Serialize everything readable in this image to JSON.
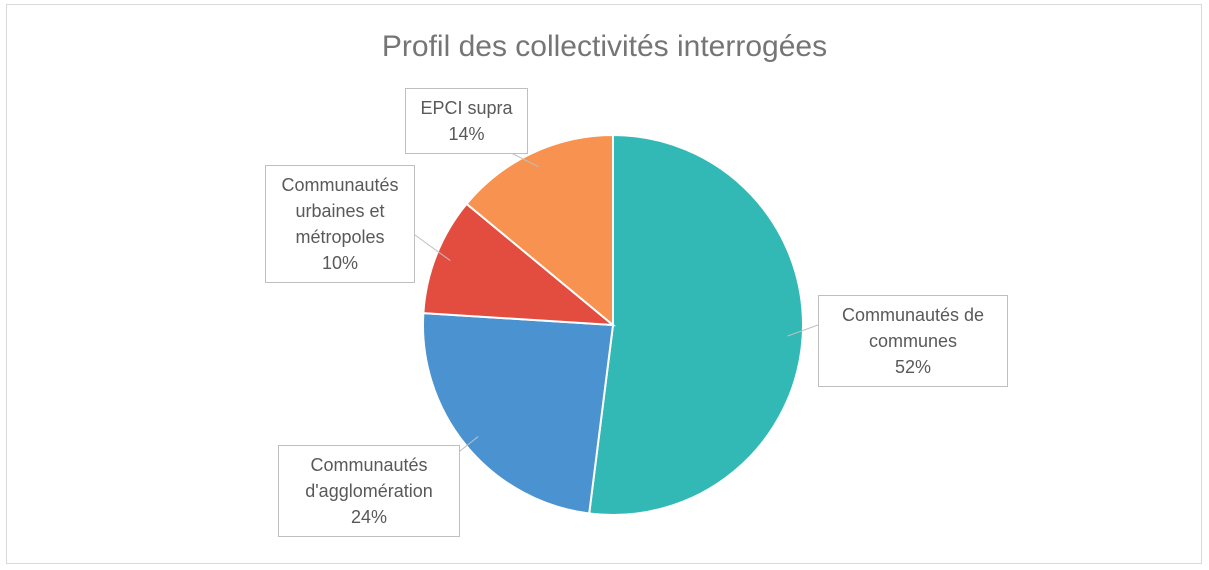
{
  "chart_data": {
    "type": "pie",
    "title": "Profil des collectivités interrogées",
    "categories": [
      "Communautés de communes",
      "Communautés d'agglomération",
      "Communautés urbaines et métropoles",
      "EPCI supra"
    ],
    "values": [
      52,
      24,
      10,
      14
    ],
    "value_labels": [
      "52%",
      "24%",
      "10%",
      "14%"
    ],
    "colors": [
      "#33b9b5",
      "#4b92d0",
      "#e34d40",
      "#f79250"
    ]
  }
}
